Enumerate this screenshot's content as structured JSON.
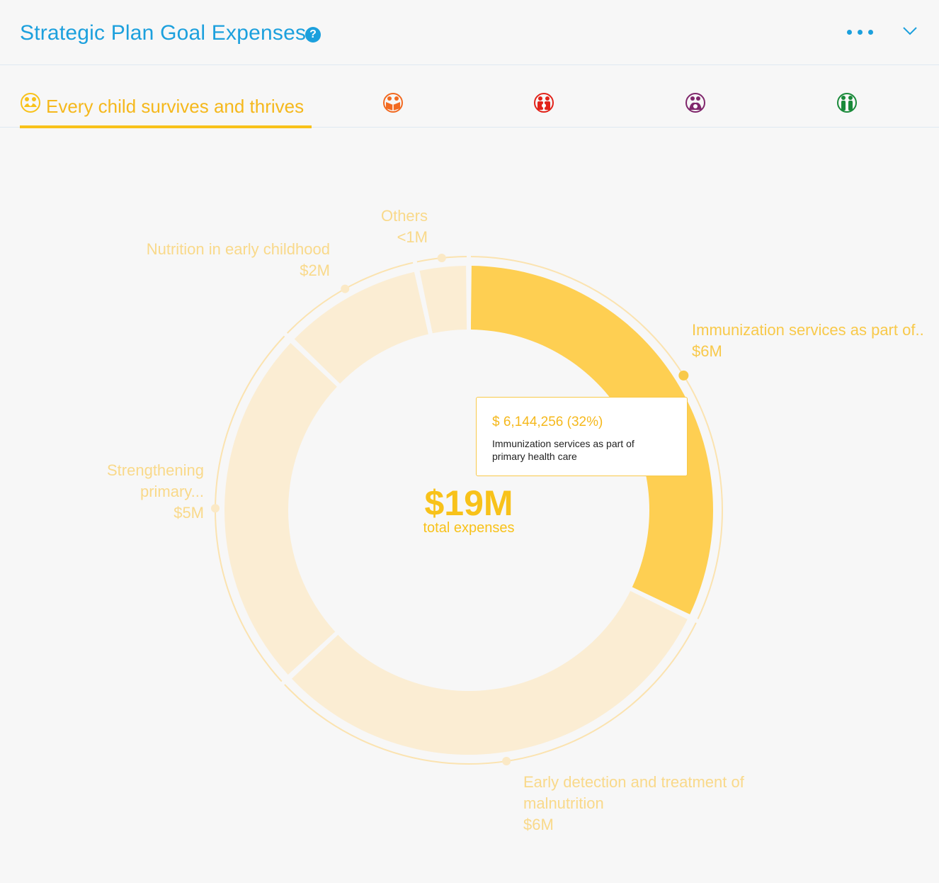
{
  "header": {
    "title": "Strategic Plan Goal Expenses",
    "help_icon": "question-circle-icon",
    "more_icon": "ellipsis-icon",
    "collapse_icon": "chevron-down-icon"
  },
  "tabs": [
    {
      "label": "Every child survives and thrives",
      "icon": "child-survives-goal-icon",
      "color": "#f8c21a",
      "active": true
    },
    {
      "label": "",
      "icon": "child-learns-goal-icon",
      "color": "#f26a21"
    },
    {
      "label": "",
      "icon": "child-protected-goal-icon",
      "color": "#e2231a"
    },
    {
      "label": "",
      "icon": "child-safe-environment-goal-icon",
      "color": "#80276c"
    },
    {
      "label": "",
      "icon": "child-fair-chance-goal-icon",
      "color": "#1a8a3a"
    }
  ],
  "center": {
    "value": "$19M",
    "caption": "total expenses"
  },
  "tooltip": {
    "value": "$ 6,144,256 (32%)",
    "description": "Immunization services as part of primary health care"
  },
  "colors": {
    "accent": "#f8c21a",
    "active_slice": "#fecf52",
    "inactive_slice": "#fbedd3",
    "brand_blue": "#1ca0dd"
  },
  "chart_data": {
    "type": "pie",
    "variant": "donut",
    "title": "",
    "total_label": "$19M",
    "slices": [
      {
        "name": "Immunization services as part of..",
        "value_label": "$6M",
        "value": 6.144256,
        "active": true
      },
      {
        "name": "Early detection and treatment of malnutrition",
        "value_label": "$6M",
        "value": 5.9
      },
      {
        "name": "Strengthening primary...",
        "value_label": "$5M",
        "value": 4.6
      },
      {
        "name": "Nutrition in early childhood",
        "value_label": "$2M",
        "value": 1.8
      },
      {
        "name": "Others",
        "value_label": "<1M",
        "value": 0.65
      }
    ]
  }
}
